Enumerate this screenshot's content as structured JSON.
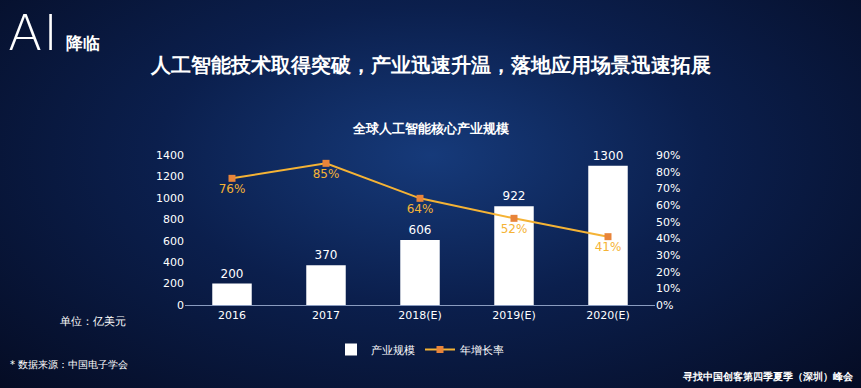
{
  "header": {
    "logo": "AI",
    "logo_subtitle": "降临",
    "headline": "人工智能技术取得突破，产业迅速升温，落地应用场景迅速拓展"
  },
  "chart_data": {
    "type": "bar",
    "title": "全球人工智能核心产业规模",
    "ylabel": "单位：亿美元",
    "categories": [
      "2016",
      "2017",
      "2018(E)",
      "2019(E)",
      "2020(E)"
    ],
    "series": [
      {
        "name": "产业规模",
        "type": "bar",
        "color": "#ffffff",
        "values": [
          200,
          370,
          606,
          922,
          1300
        ]
      },
      {
        "name": "年增长率",
        "type": "line",
        "color": "#f5b335",
        "marker": "square",
        "axis": "y2",
        "values": [
          76,
          85,
          64,
          52,
          41
        ],
        "value_labels": [
          "76%",
          "85%",
          "64%",
          "52%",
          "41%"
        ]
      }
    ],
    "ylim": [
      0,
      1400
    ],
    "yticks": [
      0,
      200,
      400,
      600,
      800,
      1000,
      1200,
      1400
    ],
    "y2lim": [
      0,
      90
    ],
    "y2ticks": [
      {
        "value": 0,
        "label": "0%"
      },
      {
        "value": 10,
        "label": "10%"
      },
      {
        "value": 20,
        "label": "20%"
      },
      {
        "value": 30,
        "label": "30%"
      },
      {
        "value": 40,
        "label": "40%"
      },
      {
        "value": 50,
        "label": "50%"
      },
      {
        "value": 60,
        "label": "60%"
      },
      {
        "value": 70,
        "label": "70%"
      },
      {
        "value": 80,
        "label": "80%"
      },
      {
        "value": 90,
        "label": "90%"
      }
    ],
    "data_labels": true,
    "grid": false,
    "legend": "bottom"
  },
  "footer": {
    "source": "* 数据来源：中国电子学会",
    "event": "寻找中国创客第四季夏季（深圳）峰会"
  }
}
